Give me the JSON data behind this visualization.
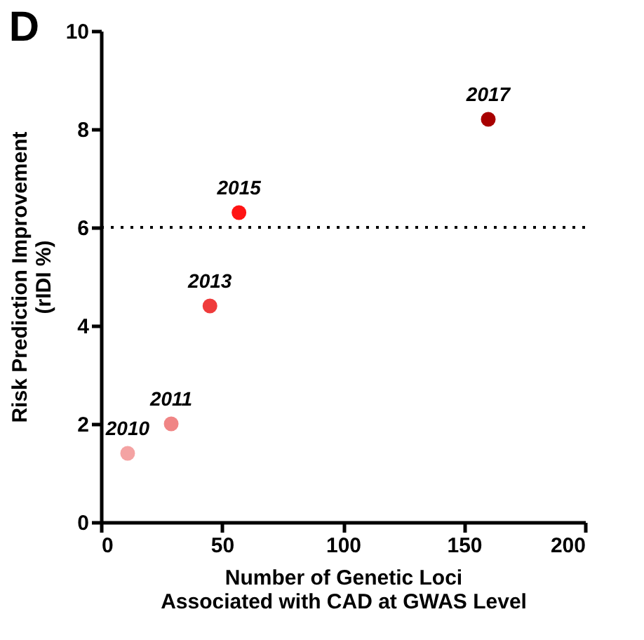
{
  "chart_data": {
    "type": "scatter",
    "title": "D",
    "xlabel": "Number of Genetic Loci\nAssociated with CAD at GWAS Level",
    "ylabel": "Risk Prediction Improvement\n(rIDI %)",
    "x": [
      11,
      29,
      45,
      57,
      160
    ],
    "values": [
      1.4,
      2.0,
      4.4,
      6.3,
      8.2
    ],
    "colors": [
      "#f4a3a3",
      "#f08585",
      "#ef3b3b",
      "#ff1414",
      "#a80000"
    ],
    "marker": "circle",
    "xlim": [
      0,
      200
    ],
    "xticks": [
      0,
      50,
      100,
      150,
      200
    ],
    "ylim": [
      0,
      10
    ],
    "yticks": [
      0,
      2,
      4,
      6,
      8,
      10
    ],
    "grid": false,
    "ref_lines": [
      {
        "axis": "y",
        "value": 6,
        "color": "#000000",
        "line_style": "dotted"
      }
    ],
    "annotations": [
      {
        "text": "2010",
        "x": 11,
        "y": 1.4
      },
      {
        "text": "2011",
        "x": 29,
        "y": 2.0
      },
      {
        "text": "2013",
        "x": 45,
        "y": 4.4
      },
      {
        "text": "2015",
        "x": 57,
        "y": 6.3
      },
      {
        "text": "2017",
        "x": 160,
        "y": 8.2
      }
    ]
  }
}
